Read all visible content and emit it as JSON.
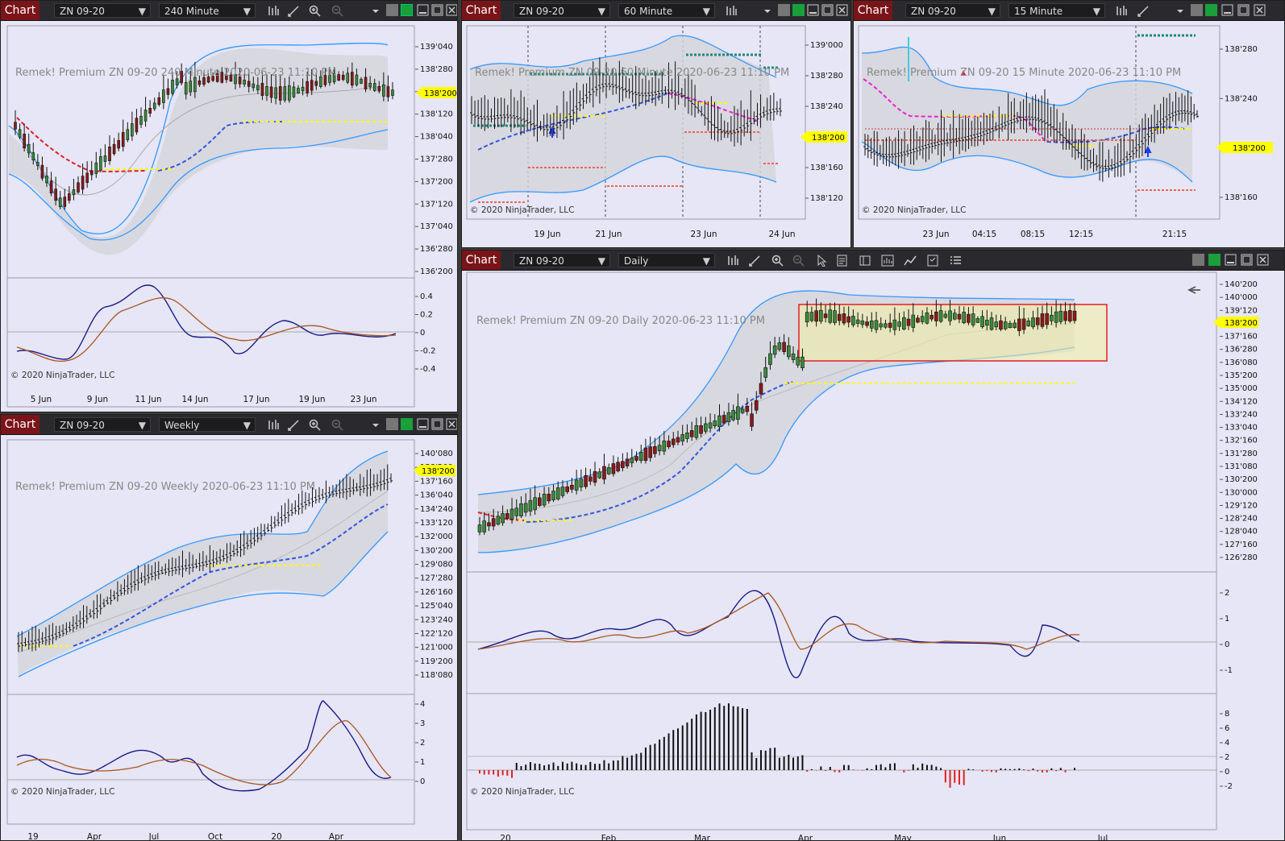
{
  "chart_label": "Chart",
  "copyright": "© 2020 NinjaTrader, LLC",
  "last_price": "138'200",
  "colors": {
    "titlebar": "#2a2a2e",
    "chart_tab": "#7a1418",
    "panel_bg": "#e6e6f6",
    "band": "#3399ff",
    "bull": "#2e7d32",
    "bear": "#8b1a1a",
    "price_tag": "#ffff00"
  },
  "windows": [
    {
      "instrument": "ZN 09-20",
      "interval": "240 Minute",
      "watermark": "Remek!  Premium  ZN 09-20  240 Minute  2020-06-23 11:10 PM",
      "yticks": [
        "139'040",
        "138'280",
        "138'200",
        "138'120",
        "138'040",
        "137'280",
        "137'200",
        "137'120",
        "137'040",
        "136'280",
        "136'200"
      ],
      "osc_ticks": [
        "0.4",
        "0.2",
        "0",
        "-0.2",
        "-0.4"
      ],
      "xticks": [
        "5 Jun",
        "9 Jun",
        "11 Jun",
        "14 Jun",
        "17 Jun",
        "19 Jun",
        "23 Jun"
      ]
    },
    {
      "instrument": "ZN 09-20",
      "interval": "60 Minute",
      "watermark": "Remek!  Premium  ZN 09-20  60 Minute  2020-06-23 11:10 PM",
      "yticks": [
        "139'000",
        "138'280",
        "138'240",
        "138'200",
        "138'160",
        "138'120"
      ],
      "xticks": [
        "19 Jun",
        "21 Jun",
        "23 Jun",
        "24 Jun"
      ]
    },
    {
      "instrument": "ZN 09-20",
      "interval": "15 Minute",
      "watermark": "Remek!  Premium  ZN 09-20  15 Minute  2020-06-23 11:10 PM",
      "yticks": [
        "138'280",
        "138'240",
        "138'200",
        "138'160"
      ],
      "xticks": [
        "23 Jun",
        "04:15",
        "08:15",
        "12:15",
        "21:15"
      ]
    },
    {
      "instrument": "ZN 09-20",
      "interval": "Daily",
      "watermark": "Remek!  Premium  ZN 09-20  Daily  2020-06-23 11:10 PM",
      "yticks": [
        "140'200",
        "140'000",
        "139'120",
        "138'200",
        "137'160",
        "136'280",
        "136'080",
        "135'200",
        "135'000",
        "134'120",
        "133'240",
        "133'040",
        "132'160",
        "131'280",
        "131'080",
        "130'200",
        "130'000",
        "129'120",
        "128'240",
        "128'040",
        "127'160",
        "126'280"
      ],
      "osc_ticks": [
        "2",
        "1",
        "0",
        "-1"
      ],
      "hist_ticks": [
        "8",
        "6",
        "4",
        "2",
        "0",
        "-2"
      ],
      "xticks": [
        "20",
        "Feb",
        "Mar",
        "Apr",
        "May",
        "Jun",
        "Jul"
      ]
    },
    {
      "instrument": "ZN 09-20",
      "interval": "Weekly",
      "watermark": "Remek!  Premium  ZN 09-20  Weekly  2020-06-23 11:10 PM",
      "yticks": [
        "140'080",
        "138'200",
        "137'160",
        "136'040",
        "134'240",
        "133'120",
        "132'000",
        "130'200",
        "129'080",
        "127'280",
        "126'160",
        "125'040",
        "123'240",
        "122'120",
        "121'000",
        "119'200",
        "118'080"
      ],
      "osc_ticks": [
        "4",
        "3",
        "2",
        "1",
        "0"
      ],
      "xticks": [
        "19",
        "Apr",
        "Jul",
        "Oct",
        "20",
        "Apr"
      ]
    }
  ]
}
